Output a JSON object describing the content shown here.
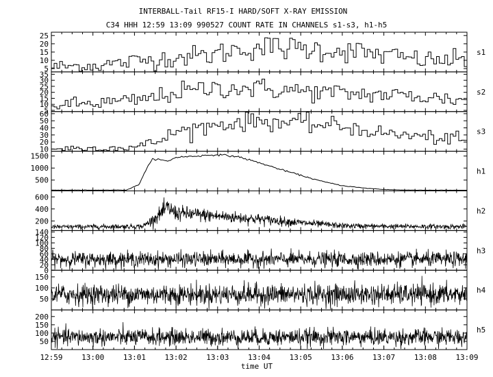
{
  "chart_data": {
    "type": "line",
    "title": "INTERBALL-Tail RF15-I HARD/SOFT X-RAY EMISSION",
    "subtitle": "C34 HHH 12:59 13:09 990527  COUNT RATE IN CHANNELS s1-s3, h1-h5",
    "xlabel": "time UT",
    "x_ticks": [
      "12:59",
      "13:00",
      "13:01",
      "13:02",
      "13:03",
      "13:04",
      "13:05",
      "13:06",
      "13:07",
      "13:08",
      "13:09"
    ],
    "grid": false,
    "panels": [
      {
        "name": "s1",
        "ylim": [
          3,
          27
        ],
        "yticks": [
          "5",
          "10",
          "15",
          "20",
          "25"
        ],
        "style": "step",
        "series_profile": [
          [
            0,
            6
          ],
          [
            1,
            7
          ],
          [
            1.5,
            8
          ],
          [
            2.2,
            10
          ],
          [
            3,
            12
          ],
          [
            3.8,
            13
          ],
          [
            4.3,
            16
          ],
          [
            5.0,
            18
          ],
          [
            6,
            17
          ],
          [
            7,
            16
          ],
          [
            8,
            13
          ],
          [
            9,
            10
          ],
          [
            10,
            10
          ]
        ]
      },
      {
        "name": "s2",
        "ylim": [
          4,
          37
        ],
        "yticks": [
          "5",
          "10",
          "15",
          "20",
          "25",
          "30",
          "35"
        ],
        "style": "step",
        "series_profile": [
          [
            0,
            9
          ],
          [
            1,
            11
          ],
          [
            2,
            13
          ],
          [
            2.5,
            16
          ],
          [
            3,
            20
          ],
          [
            4,
            24
          ],
          [
            5,
            23
          ],
          [
            6,
            21
          ],
          [
            7,
            19
          ],
          [
            8,
            18
          ],
          [
            9,
            16
          ],
          [
            10,
            13
          ]
        ]
      },
      {
        "name": "s3",
        "ylim": [
          7,
          63
        ],
        "yticks": [
          "10",
          "20",
          "30",
          "40",
          "50",
          "60"
        ],
        "style": "step",
        "series_profile": [
          [
            0,
            11
          ],
          [
            1,
            11
          ],
          [
            2,
            13
          ],
          [
            2.5,
            20
          ],
          [
            3,
            35
          ],
          [
            4,
            45
          ],
          [
            5,
            50
          ],
          [
            6,
            46
          ],
          [
            7,
            42
          ],
          [
            8,
            32
          ],
          [
            9,
            27
          ],
          [
            10,
            22
          ]
        ]
      },
      {
        "name": "h1",
        "ylim": [
          50,
          1700
        ],
        "yticks": [
          "500",
          "1000",
          "1500"
        ],
        "style": "smooth",
        "series_profile": [
          [
            0,
            80
          ],
          [
            1.8,
            85
          ],
          [
            2.1,
            300
          ],
          [
            2.3,
            1000
          ],
          [
            2.45,
            1400
          ],
          [
            2.6,
            1350
          ],
          [
            2.8,
            1280
          ],
          [
            3.0,
            1450
          ],
          [
            3.5,
            1500
          ],
          [
            4.0,
            1560
          ],
          [
            4.5,
            1470
          ],
          [
            5.0,
            1220
          ],
          [
            5.5,
            950
          ],
          [
            6.0,
            700
          ],
          [
            6.5,
            450
          ],
          [
            7.0,
            270
          ],
          [
            7.5,
            170
          ],
          [
            8.0,
            110
          ],
          [
            8.5,
            85
          ],
          [
            10,
            75
          ]
        ]
      },
      {
        "name": "h2",
        "ylim": [
          40,
          700
        ],
        "yticks": [
          "200",
          "400",
          "600"
        ],
        "style": "noise",
        "series_profile": [
          [
            0,
            100
          ],
          [
            2.2,
            110
          ],
          [
            2.5,
            250
          ],
          [
            2.8,
            420
          ],
          [
            3.0,
            330
          ],
          [
            4.0,
            280
          ],
          [
            5.0,
            230
          ],
          [
            6.0,
            170
          ],
          [
            7.0,
            120
          ],
          [
            8.0,
            110
          ],
          [
            10,
            105
          ]
        ]
      },
      {
        "name": "h3",
        "ylim": [
          0,
          145
        ],
        "yticks": [
          "0",
          "20",
          "40",
          "60",
          "80",
          "100",
          "120",
          "140"
        ],
        "style": "noise",
        "series_profile": [
          [
            0,
            40
          ],
          [
            10,
            40
          ]
        ]
      },
      {
        "name": "h4",
        "ylim": [
          0,
          180
        ],
        "yticks": [
          "50",
          "100",
          "150"
        ],
        "style": "noise",
        "series_profile": [
          [
            0,
            70
          ],
          [
            10,
            70
          ]
        ]
      },
      {
        "name": "h5",
        "ylim": [
          0,
          240
        ],
        "yticks": [
          "50",
          "100",
          "150",
          "200"
        ],
        "style": "noise",
        "series_profile": [
          [
            0,
            75
          ],
          [
            10,
            75
          ]
        ]
      }
    ]
  }
}
